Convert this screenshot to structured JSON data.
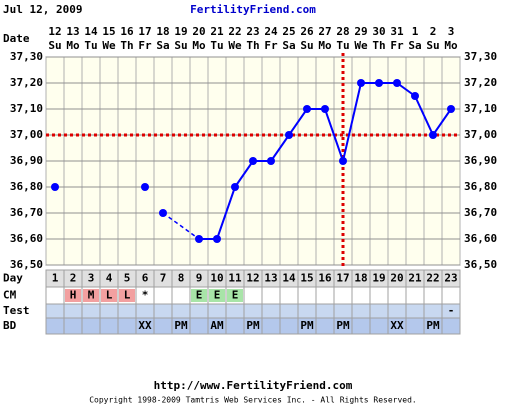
{
  "chart_data": {
    "type": "line",
    "date_label": "Jul 12, 2009",
    "title": "FertilityFriend.com",
    "date_row_label": "Date",
    "dates": [
      "12",
      "13",
      "14",
      "15",
      "16",
      "17",
      "18",
      "19",
      "20",
      "21",
      "22",
      "23",
      "24",
      "25",
      "26",
      "27",
      "28",
      "29",
      "30",
      "31",
      "1",
      "2",
      "3"
    ],
    "weekdays": [
      "Su",
      "Mo",
      "Tu",
      "We",
      "Th",
      "Fr",
      "Sa",
      "Su",
      "Mo",
      "Tu",
      "We",
      "Th",
      "Fr",
      "Sa",
      "Su",
      "Mo",
      "Tu",
      "We",
      "Th",
      "Fr",
      "Sa",
      "Su",
      "Mo"
    ],
    "series": [
      {
        "color": "#0000ff",
        "line": false,
        "values": [
          36.8,
          null,
          null,
          null,
          null,
          36.8,
          null,
          null,
          null,
          null,
          null,
          null,
          null,
          null,
          null,
          null,
          null,
          null,
          null,
          null,
          null,
          null,
          null
        ]
      },
      {
        "color": "#0000ff",
        "line": true,
        "values": [
          null,
          null,
          null,
          null,
          null,
          null,
          36.7,
          null,
          36.6,
          36.6,
          36.8,
          36.9,
          36.9,
          37.0,
          37.1,
          37.1,
          36.9,
          37.2,
          37.2,
          37.2,
          37.15,
          37.0,
          37.1
        ]
      }
    ],
    "ylim": [
      36.5,
      37.3
    ],
    "yticks": [
      {
        "value": 36.5,
        "label": "36,50"
      },
      {
        "value": 36.6,
        "label": "36,60"
      },
      {
        "value": 36.7,
        "label": "36,70"
      },
      {
        "value": 36.8,
        "label": "36,80"
      },
      {
        "value": 36.9,
        "label": "36,90"
      },
      {
        "value": 37.0,
        "label": "37,00"
      },
      {
        "value": 37.1,
        "label": "37,10"
      },
      {
        "value": 37.2,
        "label": "37,20"
      },
      {
        "value": 37.3,
        "label": "37,30"
      }
    ],
    "grid": true,
    "coverline": 37.0,
    "coverline_color": "#dd0000",
    "ovulation_day": 17,
    "rows": [
      {
        "label": "Day",
        "color": "#e0e0e0",
        "cells": [
          1,
          2,
          3,
          4,
          5,
          6,
          7,
          8,
          9,
          10,
          11,
          12,
          13,
          14,
          15,
          16,
          17,
          18,
          19,
          20,
          21,
          22,
          23
        ]
      },
      {
        "label": "CM",
        "color": "#ffffff",
        "cells": [
          null,
          "H",
          "M",
          "L",
          "L",
          "*",
          null,
          null,
          "E",
          "E",
          "E",
          null,
          null,
          null,
          null,
          null,
          null,
          null,
          null,
          null,
          null,
          null,
          null
        ]
      },
      {
        "label": "Test",
        "color": "#c8d8f0",
        "cells": [
          null,
          null,
          null,
          null,
          null,
          null,
          null,
          null,
          null,
          null,
          null,
          null,
          null,
          null,
          null,
          null,
          null,
          null,
          null,
          null,
          null,
          null,
          "-"
        ]
      },
      {
        "label": "BD",
        "color": "#b4c8ec",
        "cells": [
          null,
          null,
          null,
          null,
          null,
          "XX",
          null,
          "PM",
          null,
          "AM",
          null,
          "PM",
          null,
          null,
          "PM",
          null,
          "PM",
          null,
          null,
          "XX",
          null,
          "PM",
          null
        ]
      }
    ],
    "cell_colors": {
      "H": "#f2a0a0",
      "M": "#f2a0a0",
      "L": "#f2a0a0",
      "E": "#a8e4a8"
    },
    "footer_url": "http://www.FertilityFriend.com",
    "footer_copyright": "Copyright 1998-2009 Tamtris Web Services Inc. - All Rights Reserved."
  }
}
